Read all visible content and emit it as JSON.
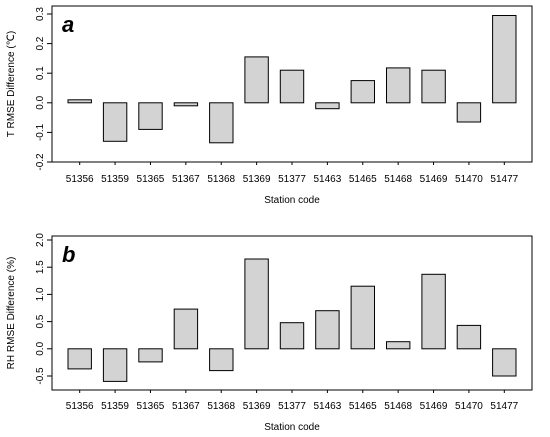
{
  "chart_data": [
    {
      "type": "bar",
      "panel_label": "a",
      "xlabel": "Station code",
      "ylabel": "T RMSE Difference (℃)",
      "categories": [
        "51356",
        "51359",
        "51365",
        "51367",
        "51368",
        "51369",
        "51377",
        "51463",
        "51465",
        "51468",
        "51469",
        "51470",
        "51477"
      ],
      "values": [
        0.01,
        -0.13,
        -0.09,
        -0.01,
        -0.135,
        0.155,
        0.11,
        -0.02,
        0.075,
        0.118,
        0.11,
        -0.065,
        0.295
      ],
      "ylim": [
        -0.2,
        0.3
      ],
      "yticks": [
        -0.2,
        -0.1,
        0.0,
        0.1,
        0.2,
        0.3
      ],
      "ytick_labels": [
        "-0.2",
        "-0.1",
        "0.0",
        "0.1",
        "0.2",
        "0.3"
      ],
      "grid": false,
      "colors": {
        "bar_fill": "#d3d3d3",
        "bar_stroke": "#000000"
      }
    },
    {
      "type": "bar",
      "panel_label": "b",
      "xlabel": "Station code",
      "ylabel": "RH RMSE Difference (%)",
      "categories": [
        "51356",
        "51359",
        "51365",
        "51367",
        "51368",
        "51369",
        "51377",
        "51463",
        "51465",
        "51468",
        "51469",
        "51470",
        "51477"
      ],
      "values": [
        -0.37,
        -0.6,
        -0.24,
        0.73,
        -0.4,
        1.65,
        0.48,
        0.7,
        1.15,
        0.13,
        1.37,
        0.43,
        -0.5
      ],
      "ylim": [
        -0.5,
        2.0
      ],
      "yticks": [
        -0.5,
        0.0,
        0.5,
        1.0,
        1.5,
        2.0
      ],
      "ytick_labels": [
        "-0.5",
        "0.0",
        "0.5",
        "1.0",
        "1.5",
        "2.0"
      ],
      "grid": false,
      "colors": {
        "bar_fill": "#d3d3d3",
        "bar_stroke": "#000000"
      }
    }
  ]
}
